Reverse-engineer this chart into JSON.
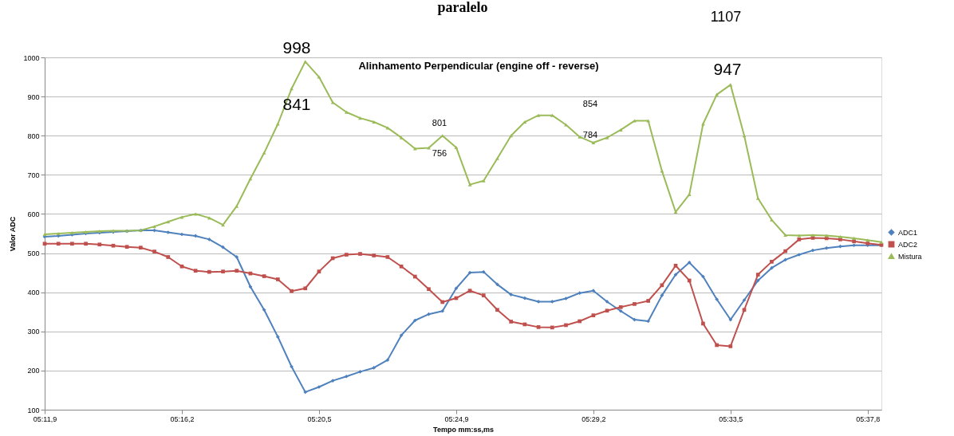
{
  "chart_data": {
    "type": "line",
    "title": "Alinhamento Perpendicular (engine off - reverse)",
    "xlabel": "Tempo mm:ss,ms",
    "ylabel": "Valor ADC",
    "categories": [
      "05:11,9",
      null,
      null,
      null,
      null,
      null,
      null,
      null,
      null,
      null,
      "05:16,2",
      null,
      null,
      null,
      null,
      null,
      null,
      null,
      null,
      null,
      "05:20,5",
      null,
      null,
      null,
      null,
      null,
      null,
      null,
      null,
      null,
      "05:24,9",
      null,
      null,
      null,
      null,
      null,
      null,
      null,
      null,
      null,
      "05:29,2",
      null,
      null,
      null,
      null,
      null,
      null,
      null,
      null,
      null,
      "05:33,5",
      null,
      null,
      null,
      null,
      null,
      null,
      null,
      null,
      null,
      "05:37,8",
      null
    ],
    "ylim": [
      100,
      1000
    ],
    "yticks": [
      100,
      200,
      300,
      400,
      500,
      600,
      700,
      800,
      900,
      1000
    ],
    "grid": "y",
    "legend": "right",
    "line_style": "solid",
    "series": [
      {
        "name": "ADC1",
        "color": "#4f81bd",
        "marker": "diamond",
        "values": [
          542,
          544,
          547,
          550,
          552,
          554,
          556,
          558,
          558,
          553,
          548,
          544,
          535,
          515,
          490,
          414,
          355,
          286,
          210,
          145,
          158,
          174,
          185,
          197,
          207,
          227,
          290,
          328,
          344,
          352,
          410,
          450,
          452,
          420,
          394,
          385,
          376,
          376,
          384,
          398,
          404,
          376,
          352,
          330,
          326,
          392,
          445,
          476,
          440,
          382,
          330,
          380,
          430,
          462,
          483,
          496,
          507,
          513,
          517,
          520,
          520,
          520
        ]
      },
      {
        "name": "ADC2",
        "color": "#c0504d",
        "marker": "square",
        "values": [
          524,
          524,
          524,
          524,
          522,
          519,
          516,
          514,
          504,
          490,
          466,
          455,
          452,
          453,
          455,
          448,
          441,
          433,
          403,
          410,
          453,
          487,
          496,
          498,
          494,
          490,
          466,
          440,
          408,
          375,
          385,
          404,
          392,
          355,
          325,
          318,
          311,
          310,
          316,
          326,
          341,
          353,
          362,
          370,
          378,
          418,
          468,
          430,
          320,
          265,
          262,
          355,
          445,
          478,
          505,
          535,
          539,
          538,
          535,
          530,
          525,
          521
        ]
      },
      {
        "name": "Mistura",
        "color": "#9bbb59",
        "marker": "triangle",
        "values": [
          548,
          550,
          552,
          554,
          556,
          557,
          557,
          558,
          568,
          580,
          592,
          600,
          590,
          572,
          620,
          690,
          756,
          830,
          920,
          989,
          950,
          885,
          860,
          845,
          835,
          820,
          795,
          767,
          769,
          800,
          770,
          675,
          685,
          742,
          800,
          835,
          852,
          852,
          828,
          797,
          782,
          795,
          815,
          838,
          838,
          710,
          605,
          650,
          830,
          905,
          930,
          800,
          640,
          585,
          546,
          545,
          546,
          545,
          542,
          538,
          533,
          528
        ]
      }
    ],
    "annotations": [
      "paralelo",
      "1107",
      "998",
      "841",
      "801",
      "756",
      "854",
      "784",
      "947"
    ]
  }
}
